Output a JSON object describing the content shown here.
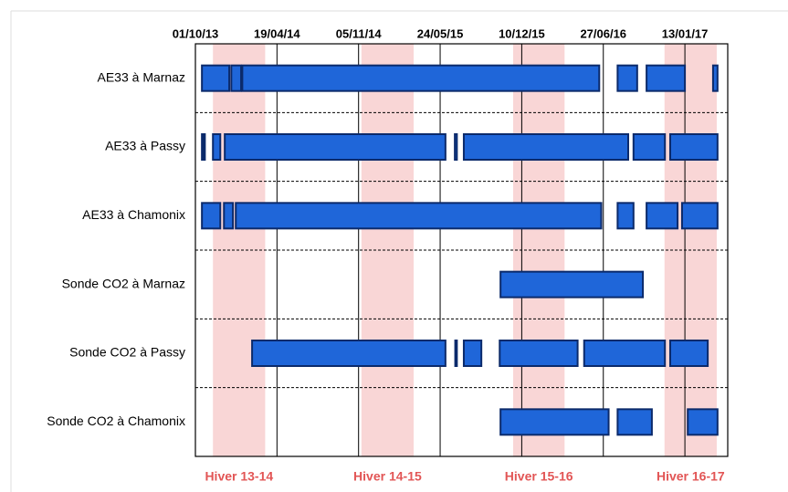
{
  "chart_data": {
    "type": "timeline",
    "rows": [
      {
        "name": "AE33 à Marnaz",
        "segments": [
          [
            "2013-10-17",
            "2013-12-23"
          ],
          [
            "2013-12-28",
            "2014-01-21"
          ],
          [
            "2014-01-24",
            "2016-06-17"
          ],
          [
            "2016-08-01",
            "2016-09-18"
          ],
          [
            "2016-10-11",
            "2017-01-13"
          ],
          [
            "2017-03-23",
            "2017-04-03"
          ]
        ]
      },
      {
        "name": "AE33 à Passy",
        "segments": [
          [
            "2013-10-17",
            "2013-10-19"
          ],
          [
            "2013-10-22",
            "2013-10-24"
          ],
          [
            "2013-11-13",
            "2013-12-01"
          ],
          [
            "2013-12-12",
            "2015-06-06"
          ],
          [
            "2015-06-29",
            "2015-07-04"
          ],
          [
            "2015-07-21",
            "2016-08-27"
          ],
          [
            "2016-09-09",
            "2016-11-25"
          ],
          [
            "2016-12-08",
            "2017-04-03"
          ]
        ]
      },
      {
        "name": "AE33 à Chamonix",
        "segments": [
          [
            "2013-10-17",
            "2013-12-01"
          ],
          [
            "2013-12-10",
            "2014-01-01"
          ],
          [
            "2014-01-08",
            "2016-06-22"
          ],
          [
            "2016-08-01",
            "2016-09-09"
          ],
          [
            "2016-10-11",
            "2016-12-26"
          ],
          [
            "2017-01-06",
            "2017-04-03"
          ]
        ]
      },
      {
        "name": "Sonde CO2 à Marnaz",
        "segments": [
          [
            "2015-10-19",
            "2016-10-02"
          ]
        ]
      },
      {
        "name": "Sonde CO2 à Passy",
        "segments": [
          [
            "2014-02-17",
            "2015-06-06"
          ],
          [
            "2015-06-30",
            "2015-07-04"
          ],
          [
            "2015-07-21",
            "2015-09-02"
          ],
          [
            "2015-10-17",
            "2016-04-25"
          ],
          [
            "2016-05-11",
            "2016-11-25"
          ],
          [
            "2016-12-08",
            "2017-03-10"
          ]
        ]
      },
      {
        "name": "Sonde CO2 à Chamonix",
        "segments": [
          [
            "2015-10-19",
            "2016-07-10"
          ],
          [
            "2016-08-01",
            "2016-10-24"
          ],
          [
            "2017-01-20",
            "2017-04-03"
          ]
        ]
      }
    ],
    "color": "#1f66d9",
    "bands": [
      {
        "label": "Hiver 13-14",
        "start": "2013-11-13",
        "end": "2014-03-21"
      },
      {
        "label": "Hiver 14-15",
        "start": "2014-11-12",
        "end": "2015-03-20"
      },
      {
        "label": "Hiver 15-16",
        "start": "2015-11-19",
        "end": "2016-03-24"
      },
      {
        "label": "Hiver 16-17",
        "start": "2016-11-24",
        "end": "2017-04-01"
      }
    ],
    "band_color": "#f9d6d6",
    "xlim": [
      "2013-10-01",
      "2017-04-28"
    ],
    "xticks": [
      {
        "value": "2013-10-01",
        "label": "01/10/13"
      },
      {
        "value": "2014-04-19",
        "label": "19/04/14"
      },
      {
        "value": "2014-11-05",
        "label": "05/11/14"
      },
      {
        "value": "2015-05-24",
        "label": "24/05/15"
      },
      {
        "value": "2015-12-10",
        "label": "10/12/15"
      },
      {
        "value": "2016-06-27",
        "label": "27/06/16"
      },
      {
        "value": "2017-01-13",
        "label": "13/01/17"
      }
    ],
    "grid": true
  }
}
